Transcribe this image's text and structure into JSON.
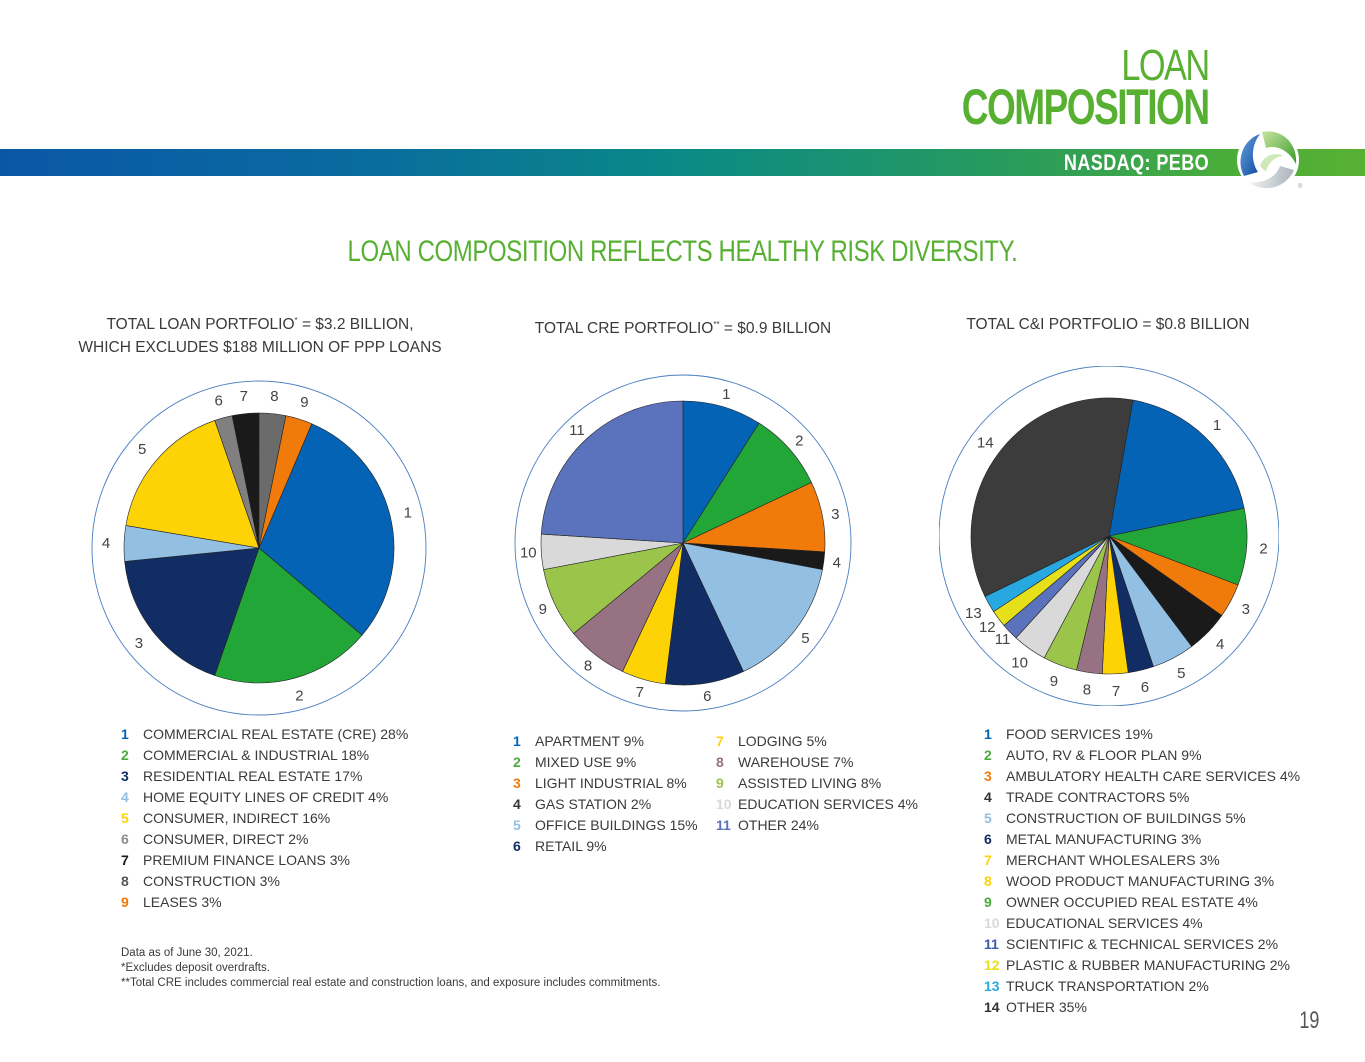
{
  "header": {
    "title_line1": "LOAN",
    "title_line2": "COMPOSITION",
    "ticker": "NASDAQ: PEBO",
    "logo_icon": "peoples-bancorp-logo-icon",
    "colors": {
      "brand_green": "#58b033",
      "band_start": "#0a57a6",
      "band_end": "#58b033"
    }
  },
  "headline": "LOAN COMPOSITION REFLECTS HEALTHY RISK DIVERSITY.",
  "chart_data": [
    {
      "type": "pie",
      "title_line1": "TOTAL LOAN PORTFOLIO",
      "title_sup": "*",
      "title_line1_rest": " = $3.2 BILLION,",
      "title_line2": "WHICH EXCLUDES $188 MILLION OF PPP LOANS",
      "start_angle_deg": 23,
      "categories": [
        "COMMERCIAL REAL ESTATE (CRE)",
        "COMMERCIAL & INDUSTRIAL",
        "RESIDENTIAL REAL ESTATE",
        "HOME EQUITY LINES OF CREDIT",
        "CONSUMER, INDIRECT",
        "CONSUMER, DIRECT",
        "PREMIUM FINANCE LOANS",
        "CONSTRUCTION",
        "LEASES"
      ],
      "values": [
        28,
        18,
        17,
        4,
        16,
        2,
        3,
        3,
        3
      ],
      "labels": [
        "1",
        "2",
        "3",
        "4",
        "5",
        "6",
        "7",
        "8",
        "9"
      ],
      "legend_text": [
        "COMMERCIAL REAL ESTATE (CRE)  28%",
        "COMMERCIAL & INDUSTRIAL 18%",
        "RESIDENTIAL REAL ESTATE 17%",
        "HOME EQUITY LINES OF CREDIT 4%",
        "CONSUMER, INDIRECT 16%",
        "CONSUMER, DIRECT 2%",
        "PREMIUM FINANCE LOANS 3%",
        "CONSTRUCTION 3%",
        "LEASES 3%"
      ],
      "colors": [
        "#0563b5",
        "#22a637",
        "#112d63",
        "#93bfe3",
        "#fdd306",
        "#808080",
        "#1a1a1a",
        "#6b6b6b",
        "#f07a0a"
      ],
      "legend_num_colors": [
        "#0563b5",
        "#4bab3c",
        "#112d63",
        "#93bfe3",
        "#fdd306",
        "#8a8a8a",
        "#1a1a1a",
        "#555555",
        "#f07a0a"
      ],
      "unit": "%"
    },
    {
      "type": "pie",
      "title_line1": "TOTAL CRE PORTFOLIO",
      "title_sup": "**",
      "title_line1_rest": " = $0.9 BILLION",
      "start_angle_deg": 0,
      "categories": [
        "APARTMENT",
        "MIXED USE",
        "LIGHT INDUSTRIAL",
        "GAS STATION",
        "OFFICE BUILDINGS",
        "RETAIL",
        "LODGING",
        "WAREHOUSE",
        "ASSISTED LIVING",
        "EDUCATION SERVICES",
        "OTHER"
      ],
      "values": [
        9,
        9,
        8,
        2,
        15,
        9,
        5,
        7,
        8,
        4,
        24
      ],
      "labels": [
        "1",
        "2",
        "3",
        "4",
        "5",
        "6",
        "7",
        "8",
        "9",
        "10",
        "11"
      ],
      "legend_text": [
        "APARTMENT 9%",
        "MIXED USE 9%",
        "LIGHT INDUSTRIAL 8%",
        "GAS STATION 2%",
        "OFFICE BUILDINGS 15%",
        "RETAIL 9%",
        "LODGING 5%",
        "WAREHOUSE 7%",
        "ASSISTED LIVING 8%",
        "EDUCATION SERVICES 4%",
        "OTHER 24%"
      ],
      "colors": [
        "#0563b5",
        "#22a637",
        "#f07a0a",
        "#1a1a1a",
        "#93bfe3",
        "#112d63",
        "#fdd306",
        "#967283",
        "#9bc54a",
        "#d9d9d9",
        "#5b72bd"
      ],
      "legend_num_colors": [
        "#0563b5",
        "#4bab3c",
        "#f07a0a",
        "#333333",
        "#93bfe3",
        "#112d63",
        "#fdd306",
        "#967283",
        "#9bc54a",
        "#d9d9d9",
        "#5b72bd"
      ],
      "unit": "%"
    },
    {
      "type": "pie",
      "title_line1": "TOTAL C&I PORTFOLIO",
      "title_sup": "",
      "title_line1_rest": " = $0.8 BILLION",
      "start_angle_deg": 10,
      "categories": [
        "FOOD SERVICES",
        "AUTO, RV & FLOOR PLAN",
        "AMBULATORY HEALTH CARE SERVICES",
        "TRADE CONTRACTORS",
        "CONSTRUCTION OF BUILDINGS",
        "METAL MANUFACTURING",
        "MERCHANT WHOLESALERS",
        "WOOD PRODUCT MANUFACTURING",
        "OWNER OCCUPIED REAL ESTATE",
        "EDUCATIONAL SERVICES",
        "SCIENTIFIC & TECHNICAL SERVICES",
        "PLASTIC & RUBBER MANUFACTURING",
        "TRUCK TRANSPORTATION",
        "OTHER"
      ],
      "values": [
        19,
        9,
        4,
        5,
        5,
        3,
        3,
        3,
        4,
        4,
        2,
        2,
        2,
        35
      ],
      "labels": [
        "1",
        "2",
        "3",
        "4",
        "5",
        "6",
        "7",
        "8",
        "9",
        "10",
        "11",
        "12",
        "13",
        "14"
      ],
      "legend_text": [
        "FOOD SERVICES 19%",
        "AUTO, RV & FLOOR PLAN 9%",
        "AMBULATORY HEALTH CARE SERVICES 4%",
        "TRADE CONTRACTORS 5%",
        "CONSTRUCTION OF BUILDINGS 5%",
        "METAL MANUFACTURING 3%",
        "MERCHANT WHOLESALERS 3%",
        "WOOD PRODUCT MANUFACTURING 3%",
        "OWNER OCCUPIED REAL ESTATE 4%",
        "EDUCATIONAL SERVICES 4%",
        "SCIENTIFIC & TECHNICAL SERVICES 2%",
        "PLASTIC & RUBBER MANUFACTURING 2%",
        "TRUCK TRANSPORTATION 2%",
        "OTHER 35%"
      ],
      "colors": [
        "#0563b5",
        "#22a637",
        "#f07a0a",
        "#1a1a1a",
        "#93bfe3",
        "#112d63",
        "#fdd306",
        "#967283",
        "#9bc54a",
        "#d9d9d9",
        "#5b72bd",
        "#e5e01a",
        "#27a8e0",
        "#3c3c3c"
      ],
      "legend_num_colors": [
        "#0563b5",
        "#4bab3c",
        "#f07a0a",
        "#333333",
        "#93bfe3",
        "#112d63",
        "#fdd306",
        "#fdd306",
        "#4bab3c",
        "#d9d9d9",
        "#3e5aa8",
        "#e5e01a",
        "#27a8e0",
        "#333333"
      ],
      "unit": "%"
    }
  ],
  "footnotes": [
    "Data as of June 30, 2021.",
    "*Excludes deposit overdrafts.",
    "**Total CRE includes commercial real estate and construction loans, and exposure includes commitments."
  ],
  "page_number": "19"
}
